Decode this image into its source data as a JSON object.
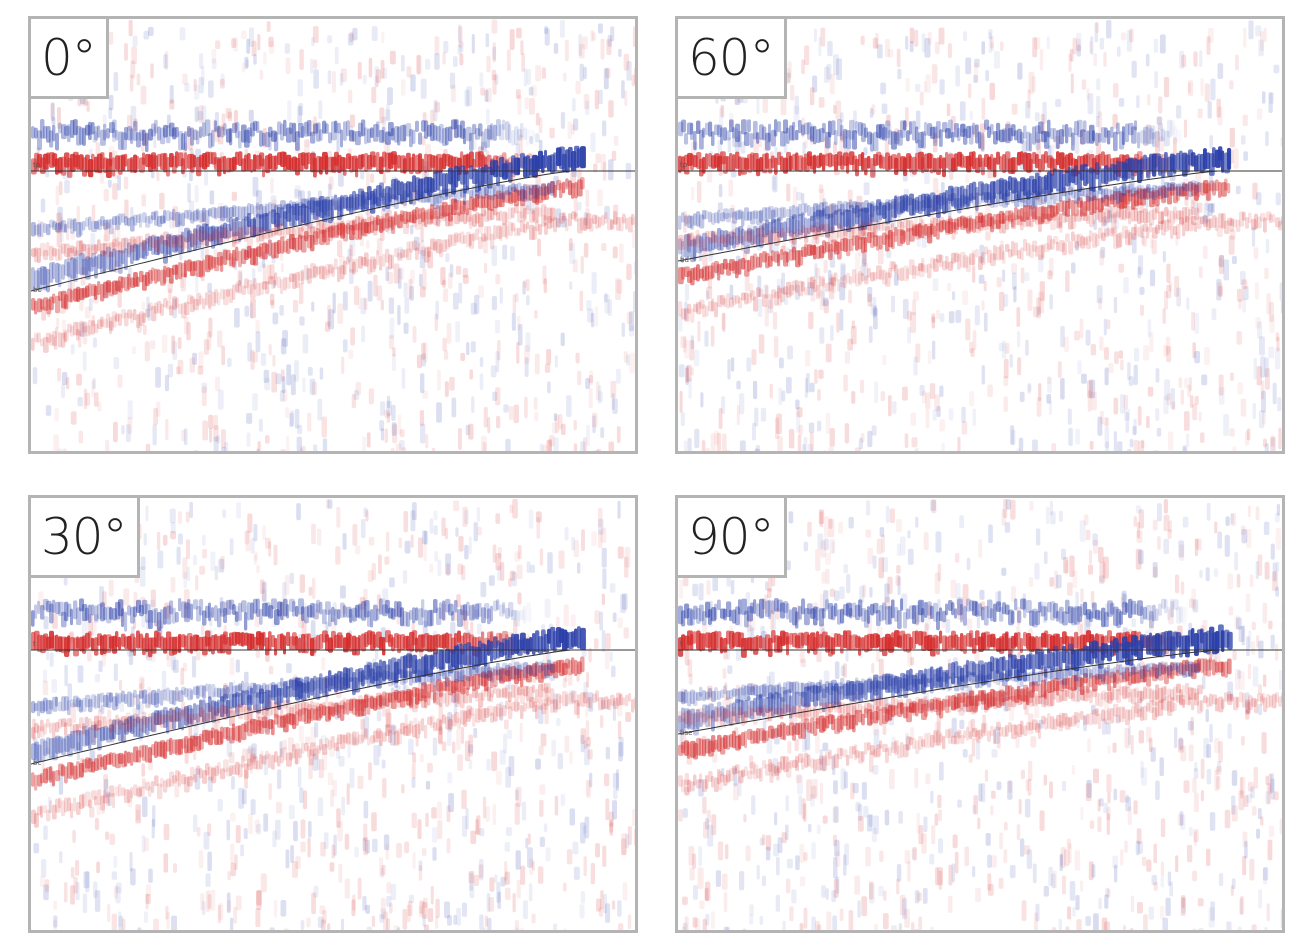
{
  "panels": [
    {
      "id": "p0",
      "label": "0°",
      "dip_strength": 1.0,
      "upper_tag": "tp",
      "lower_tag": "bc"
    },
    {
      "id": "p60",
      "label": "60°",
      "dip_strength": 0.75,
      "upper_tag": "tp",
      "lower_tag": "bd"
    },
    {
      "id": "p30",
      "label": "30°",
      "dip_strength": 0.95,
      "upper_tag": "t",
      "lower_tag": "bc"
    },
    {
      "id": "p90",
      "label": "90°",
      "dip_strength": 0.7,
      "upper_tag": "t",
      "lower_tag": "bse"
    }
  ],
  "colors": {
    "positive": "#d42a2a",
    "negative": "#2a3fa8",
    "horizon_line": "#333333",
    "frame": "#b4b4b4",
    "background": "#ffffff"
  }
}
